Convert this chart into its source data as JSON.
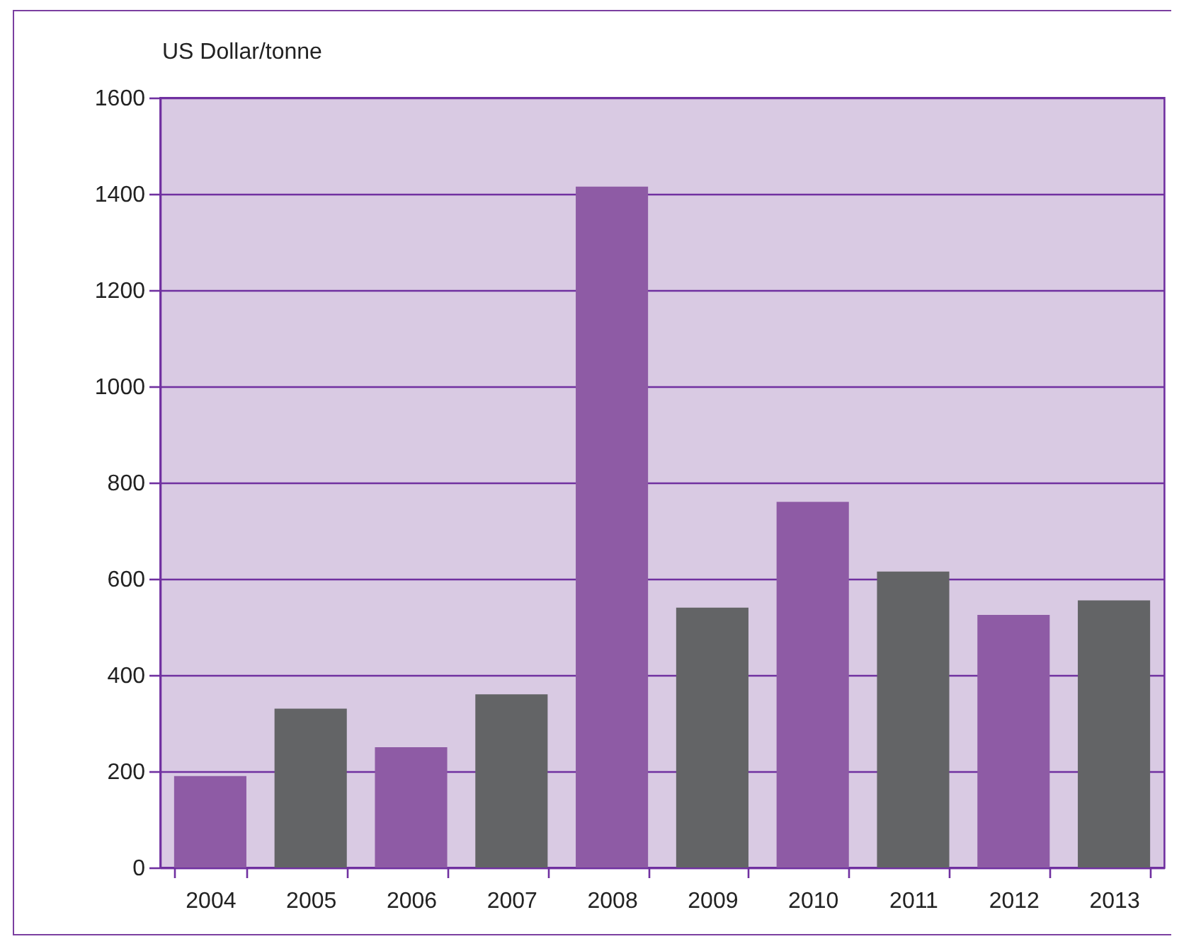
{
  "chart_data": {
    "type": "bar",
    "ylabel": "US Dollar/tonne",
    "categories": [
      "2004",
      "2005",
      "2006",
      "2007",
      "2008",
      "2009",
      "2010",
      "2011",
      "2012",
      "2013"
    ],
    "values": [
      190,
      330,
      250,
      360,
      1415,
      540,
      760,
      615,
      525,
      555
    ],
    "colors": [
      "#8e5ba5",
      "#636466",
      "#8e5ba5",
      "#636466",
      "#8e5ba5",
      "#636466",
      "#8e5ba5",
      "#636466",
      "#8e5ba5",
      "#636466"
    ],
    "ylim": [
      0,
      1600
    ],
    "yticks": [
      0,
      200,
      400,
      600,
      800,
      1000,
      1200,
      1400,
      1600
    ],
    "grid": "y"
  }
}
